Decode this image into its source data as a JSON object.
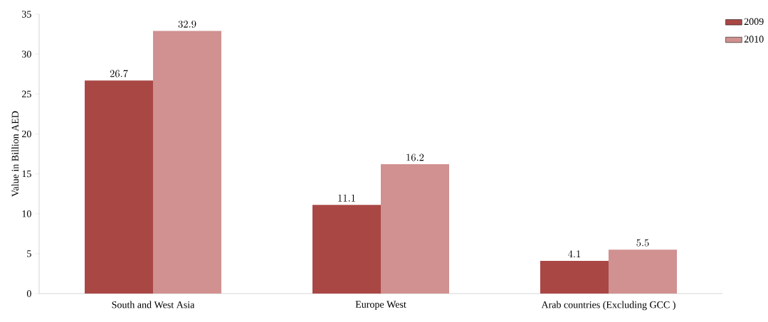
{
  "chart_data": {
    "type": "bar",
    "ylabel": "Value in Billion AED",
    "categories": [
      "South and West Asia",
      "Europe West",
      "Arab countries (Excluding GCC )"
    ],
    "series": [
      {
        "name": "2009",
        "color": "#a94745",
        "values": [
          26.7,
          11.1,
          4.1
        ]
      },
      {
        "name": "2010",
        "color": "#d09190",
        "values": [
          32.9,
          16.2,
          5.5
        ]
      }
    ],
    "ylim": [
      0,
      35
    ],
    "yticks": [
      0,
      5,
      10,
      15,
      20,
      25,
      30,
      35
    ],
    "data_labels": true,
    "legend": "top right"
  }
}
